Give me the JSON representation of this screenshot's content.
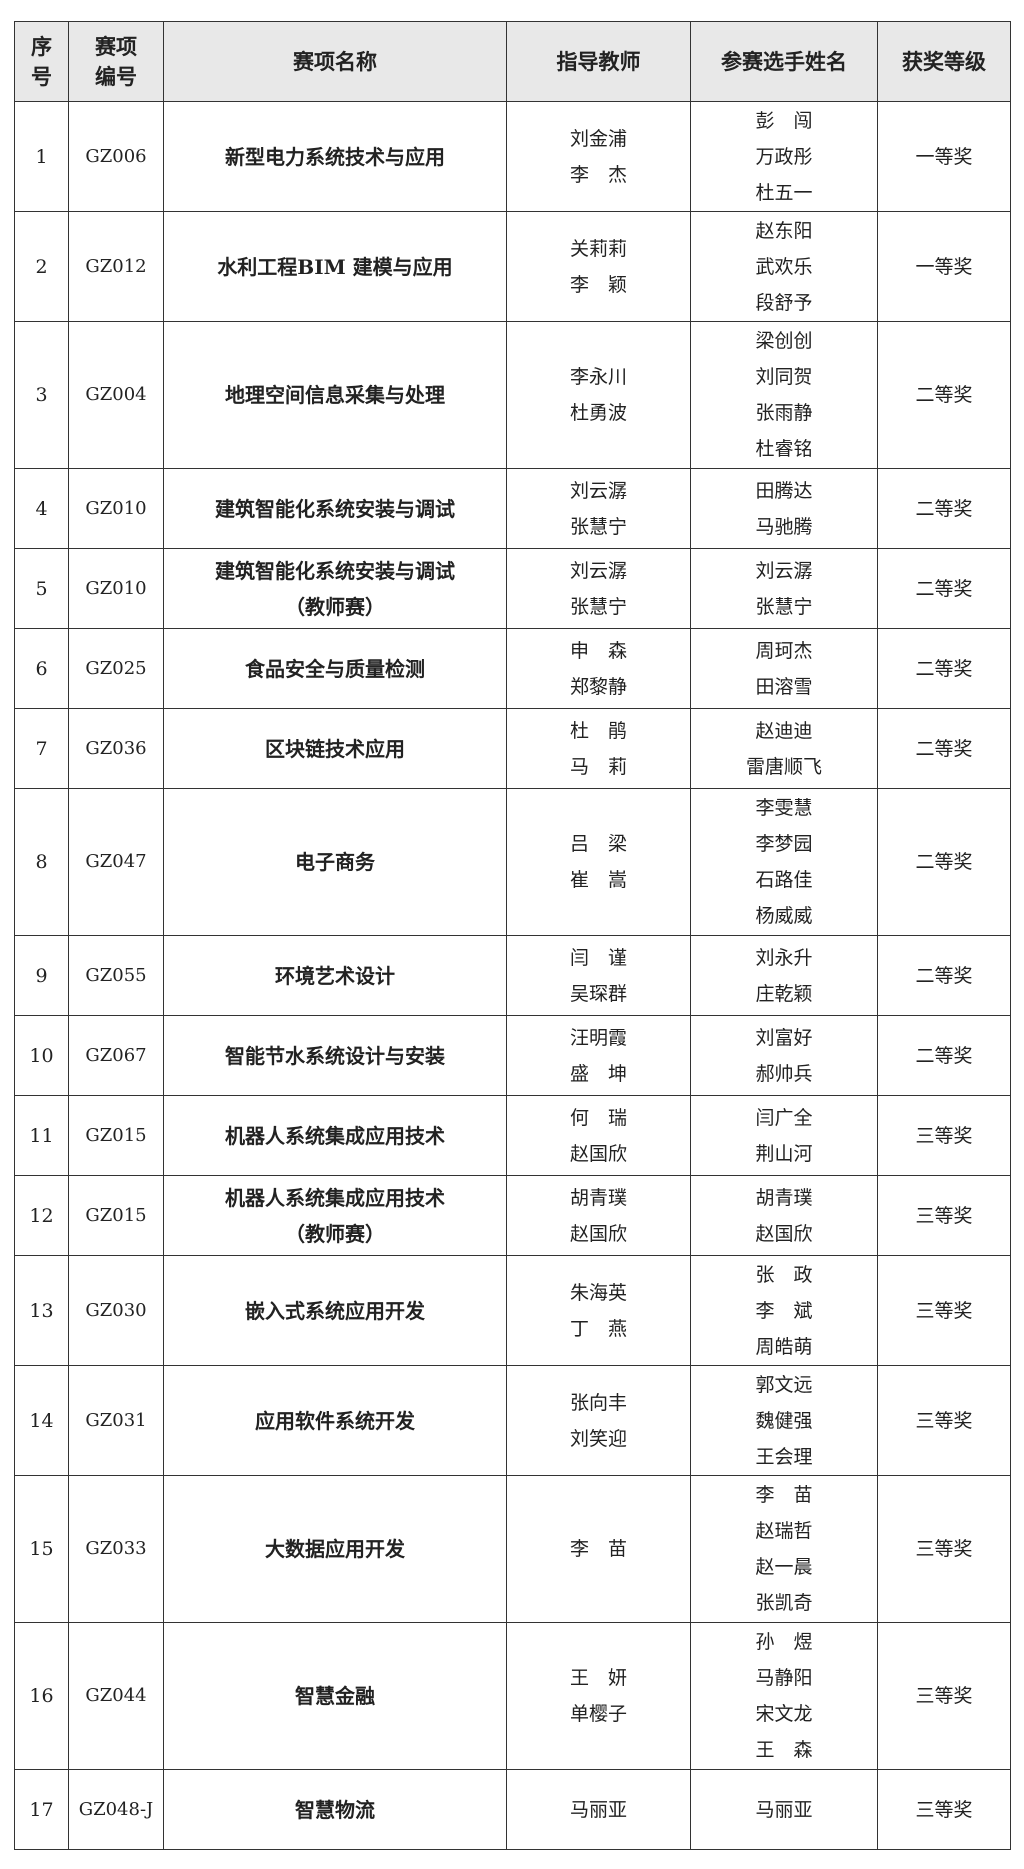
{
  "header": {
    "no": [
      "序",
      "号"
    ],
    "code": [
      "赛项",
      "编号"
    ],
    "name": "赛项名称",
    "teachers": "指导教师",
    "students": "参赛选手姓名",
    "award": "获奖等级"
  },
  "rows": [
    {
      "no": "1",
      "code": "GZ006",
      "name": [
        "新型电力系统技术与应用"
      ],
      "teachers": [
        "刘金浦",
        "李　杰"
      ],
      "students": [
        "彭　闯",
        "万政彤",
        "杜五一"
      ],
      "award": "一等奖"
    },
    {
      "no": "2",
      "code": "GZ012",
      "name": [
        "水利工程BIM 建模与应用"
      ],
      "teachers": [
        "关莉莉",
        "李　颖"
      ],
      "students": [
        "赵东阳",
        "武欢乐",
        "段舒予"
      ],
      "award": "一等奖"
    },
    {
      "no": "3",
      "code": "GZ004",
      "name": [
        "地理空间信息采集与处理"
      ],
      "teachers": [
        "李永川",
        "杜勇波"
      ],
      "students": [
        "梁创创",
        "刘同贺",
        "张雨静",
        "杜睿铭"
      ],
      "award": "二等奖"
    },
    {
      "no": "4",
      "code": "GZ010",
      "name": [
        "建筑智能化系统安装与调试"
      ],
      "teachers": [
        "刘云潺",
        "张慧宁"
      ],
      "students": [
        "田腾达",
        "马驰腾"
      ],
      "award": "二等奖"
    },
    {
      "no": "5",
      "code": "GZ010",
      "name": [
        "建筑智能化系统安装与调试",
        "（教师赛）"
      ],
      "teachers": [
        "刘云潺",
        "张慧宁"
      ],
      "students": [
        "刘云潺",
        "张慧宁"
      ],
      "award": "二等奖"
    },
    {
      "no": "6",
      "code": "GZ025",
      "name": [
        "食品安全与质量检测"
      ],
      "teachers": [
        "申　森",
        "郑黎静"
      ],
      "students": [
        "周珂杰",
        "田溶雪"
      ],
      "award": "二等奖"
    },
    {
      "no": "7",
      "code": "GZ036",
      "name": [
        "区块链技术应用"
      ],
      "teachers": [
        "杜　鹃",
        "马　莉"
      ],
      "students": [
        "赵迪迪",
        "雷唐顺飞"
      ],
      "award": "二等奖"
    },
    {
      "no": "8",
      "code": "GZ047",
      "name": [
        "电子商务"
      ],
      "teachers": [
        "吕　梁",
        "崔　嵩"
      ],
      "students": [
        "李雯慧",
        "李梦园",
        "石路佳",
        "杨威威"
      ],
      "award": "二等奖"
    },
    {
      "no": "9",
      "code": "GZ055",
      "name": [
        "环境艺术设计"
      ],
      "teachers": [
        "闫　谨",
        "吴琛群"
      ],
      "students": [
        "刘永升",
        "庄乾颖"
      ],
      "award": "二等奖"
    },
    {
      "no": "10",
      "code": "GZ067",
      "name": [
        "智能节水系统设计与安装"
      ],
      "teachers": [
        "汪明霞",
        "盛　坤"
      ],
      "students": [
        "刘富好",
        "郝帅兵"
      ],
      "award": "二等奖"
    },
    {
      "no": "11",
      "code": "GZ015",
      "name": [
        "机器人系统集成应用技术"
      ],
      "teachers": [
        "何　瑞",
        "赵国欣"
      ],
      "students": [
        "闫广全",
        "荆山河"
      ],
      "award": "三等奖"
    },
    {
      "no": "12",
      "code": "GZ015",
      "name": [
        "机器人系统集成应用技术",
        "（教师赛）"
      ],
      "teachers": [
        "胡青璞",
        "赵国欣"
      ],
      "students": [
        "胡青璞",
        "赵国欣"
      ],
      "award": "三等奖"
    },
    {
      "no": "13",
      "code": "GZ030",
      "name": [
        "嵌入式系统应用开发"
      ],
      "teachers": [
        "朱海英",
        "丁　燕"
      ],
      "students": [
        "张　政",
        "李　斌",
        "周皓萌"
      ],
      "award": "三等奖"
    },
    {
      "no": "14",
      "code": "GZ031",
      "name": [
        "应用软件系统开发"
      ],
      "teachers": [
        "张向丰",
        "刘笑迎"
      ],
      "students": [
        "郭文远",
        "魏健强",
        "王会理"
      ],
      "award": "三等奖"
    },
    {
      "no": "15",
      "code": "GZ033",
      "name": [
        "大数据应用开发"
      ],
      "teachers": [
        "李　苗"
      ],
      "students": [
        "李　苗",
        "赵瑞哲",
        "赵一晨",
        "张凯奇"
      ],
      "award": "三等奖"
    },
    {
      "no": "16",
      "code": "GZ044",
      "name": [
        "智慧金融"
      ],
      "teachers": [
        "王　妍",
        "单樱子"
      ],
      "students": [
        "孙　煜",
        "马静阳",
        "宋文龙",
        "王　森"
      ],
      "award": "三等奖"
    },
    {
      "no": "17",
      "code": "GZ048-J",
      "name": [
        "智慧物流"
      ],
      "teachers": [
        "马丽亚"
      ],
      "students": [
        "马丽亚"
      ],
      "award": "三等奖"
    }
  ]
}
